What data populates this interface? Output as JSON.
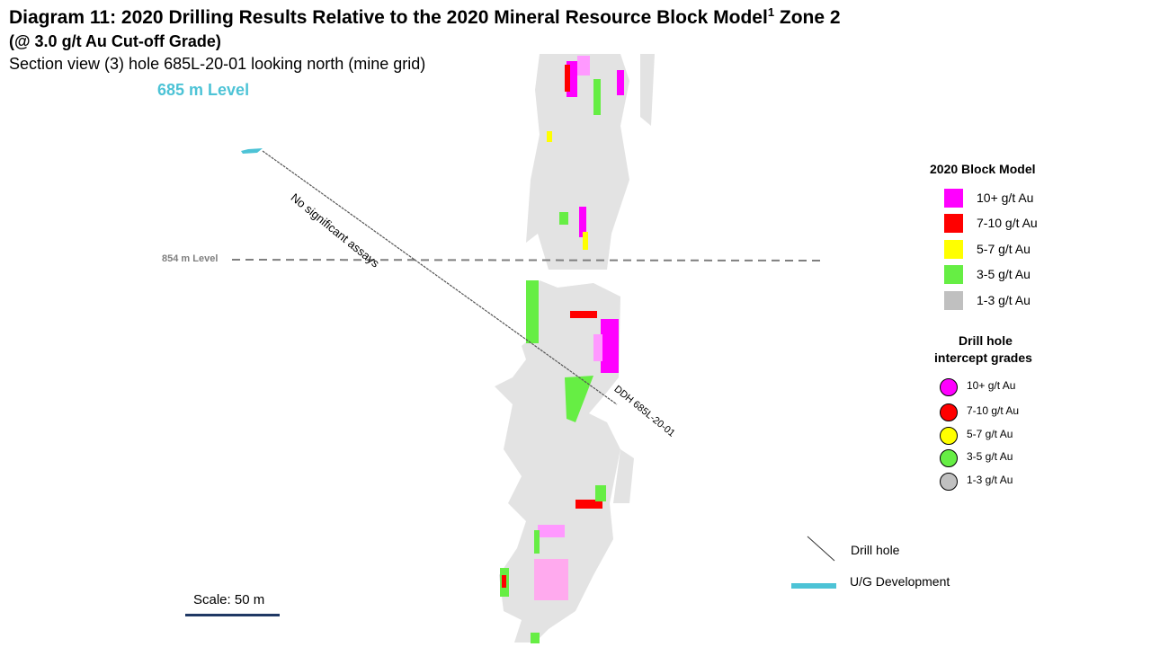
{
  "header": {
    "title": "Diagram 11: 2020 Drilling Results Relative to the 2020 Mineral Resource Block Model",
    "title_sup": "1",
    "title_suffix": " Zone 2",
    "subtitle": "(@ 3.0 g/t Au Cut-off Grade)",
    "section": "Section view (3) hole 685L-20-01 looking north (mine grid)"
  },
  "plan": {
    "level_685": "685 m Level",
    "level_854": "854 m Level",
    "no_assays": "No significant assays",
    "hole_label": "DDH 685L-20-01"
  },
  "block_model_legend": {
    "title": "2020 Block Model",
    "items": [
      {
        "label": "10+ g/t Au",
        "color": "#ff00ff"
      },
      {
        "label": "7-10 g/t Au",
        "color": "#ff0000"
      },
      {
        "label": "5-7 g/t Au",
        "color": "#ffff00"
      },
      {
        "label": "3-5 g/t Au",
        "color": "#66ee44"
      },
      {
        "label": "1-3 g/t Au",
        "color": "#c0c0c0"
      }
    ]
  },
  "intercept_legend": {
    "title_line1": "Drill hole",
    "title_line2": "intercept grades",
    "items": [
      {
        "label": "10+ g/t Au",
        "color": "#ff00ff"
      },
      {
        "label": "7-10 g/t Au",
        "color": "#ff0000"
      },
      {
        "label": "5-7 g/t Au",
        "color": "#ffff00"
      },
      {
        "label": "3-5 g/t Au",
        "color": "#66ee44"
      },
      {
        "label": "1-3 g/t Au",
        "color": "#c0c0c0"
      }
    ]
  },
  "symbols_legend": {
    "drill_hole": "Drill hole",
    "ug_development": "U/G Development"
  },
  "scale": {
    "label": "Scale: 50 m"
  },
  "colors": {
    "ug_dev": "#4dc3d6",
    "level_line": "#7f7f7f",
    "block_grey": "#e3e3e3"
  }
}
